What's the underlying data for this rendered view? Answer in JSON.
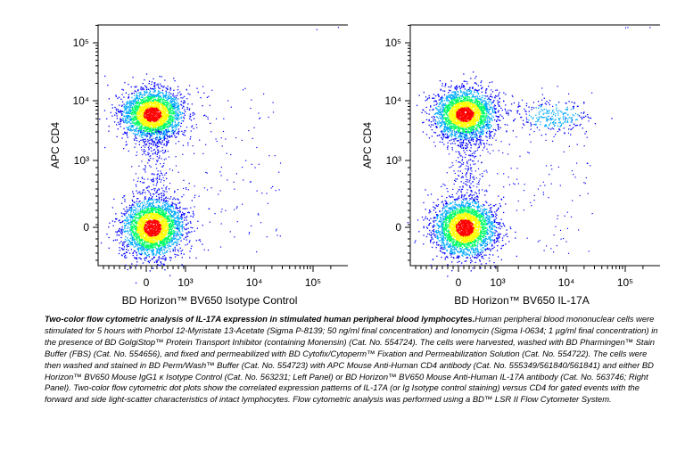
{
  "chart_data": [
    {
      "type": "scatter",
      "subtype": "flow-cytometry-density-dot-plot",
      "xlabel": "BD Horizon™ BV650 Isotype Control",
      "ylabel": "APC CD4",
      "x_scale": "biexponential",
      "y_scale": "biexponential",
      "x_ticks": [
        "0",
        "10³",
        "10⁴",
        "10⁵"
      ],
      "y_ticks": [
        "10⁵",
        "10⁴",
        "10³",
        "0"
      ],
      "xlim": [
        -500,
        250000
      ],
      "ylim": [
        -500,
        250000
      ],
      "populations": [
        {
          "name": "CD4+",
          "x_center": 150,
          "y_center": 6000
        },
        {
          "name": "CD4-",
          "x_center": 150,
          "y_center": 0
        }
      ],
      "colormap": [
        "#0000ff",
        "#00aaff",
        "#00ff66",
        "#ffff00",
        "#ff0000"
      ]
    },
    {
      "type": "scatter",
      "subtype": "flow-cytometry-density-dot-plot",
      "xlabel": "BD Horizon™ BV650 IL-17A",
      "ylabel": "APC CD4",
      "x_scale": "biexponential",
      "y_scale": "biexponential",
      "x_ticks": [
        "0",
        "10³",
        "10⁴",
        "10⁵"
      ],
      "y_ticks": [
        "10⁵",
        "10⁴",
        "10³",
        "0"
      ],
      "xlim": [
        -500,
        250000
      ],
      "ylim": [
        -500,
        250000
      ],
      "populations": [
        {
          "name": "CD4+",
          "x_center": 150,
          "y_center": 6000
        },
        {
          "name": "CD4-",
          "x_center": 150,
          "y_center": 0
        },
        {
          "name": "CD4+ IL-17A+",
          "x_center": 8000,
          "y_center": 6000
        }
      ],
      "colormap": [
        "#0000ff",
        "#00aaff",
        "#00ff66",
        "#ffff00",
        "#ff0000"
      ]
    }
  ],
  "caption": {
    "title": "Two-color flow cytometric analysis of IL-17A expression in stimulated human peripheral blood lymphocytes.",
    "body": "Human peripheral blood mononuclear cells were stimulated for 5 hours with Phorbol 12-Myristate 13-Acetate (Sigma P-8139; 50 ng/ml final concentration) and Ionomycin (Sigma I-0634; 1 µg/ml final concentration) in the presence of  BD GolgiStop™  Protein Transport Inhibitor (containing Monensin) (Cat. No. 554724). The cells were harvested, washed with BD Pharmingen™ Stain Buffer (FBS) (Cat. No. 554656), and fixed and permeabilized with BD Cytofix/Cytoperm™ Fixation and Permeabilization Solution (Cat. No. 554722).  The cells were then washed and stained in BD Perm/Wash™ Buffer (Cat. No. 554723) with APC Mouse Anti-Human CD4 antibody (Cat. No. 555349/561840/561841) and either BD Horizon™ BV650 Mouse IgG1 κ Isotype Control (Cat. No. 563231; Left Panel) or BD Horizon™ BV650 Mouse Anti-Human IL-17A antibody (Cat. No. 563746; Right Panel). Two-color flow cytometric dot plots show the correlated expression patterns of IL-17A (or Ig Isotype control staining) versus CD4 for gated events with the forward and side light-scatter characteristics of intact lymphocytes. Flow cytometric analysis was performed using a BD™ LSR II Flow Cytometer System."
  }
}
